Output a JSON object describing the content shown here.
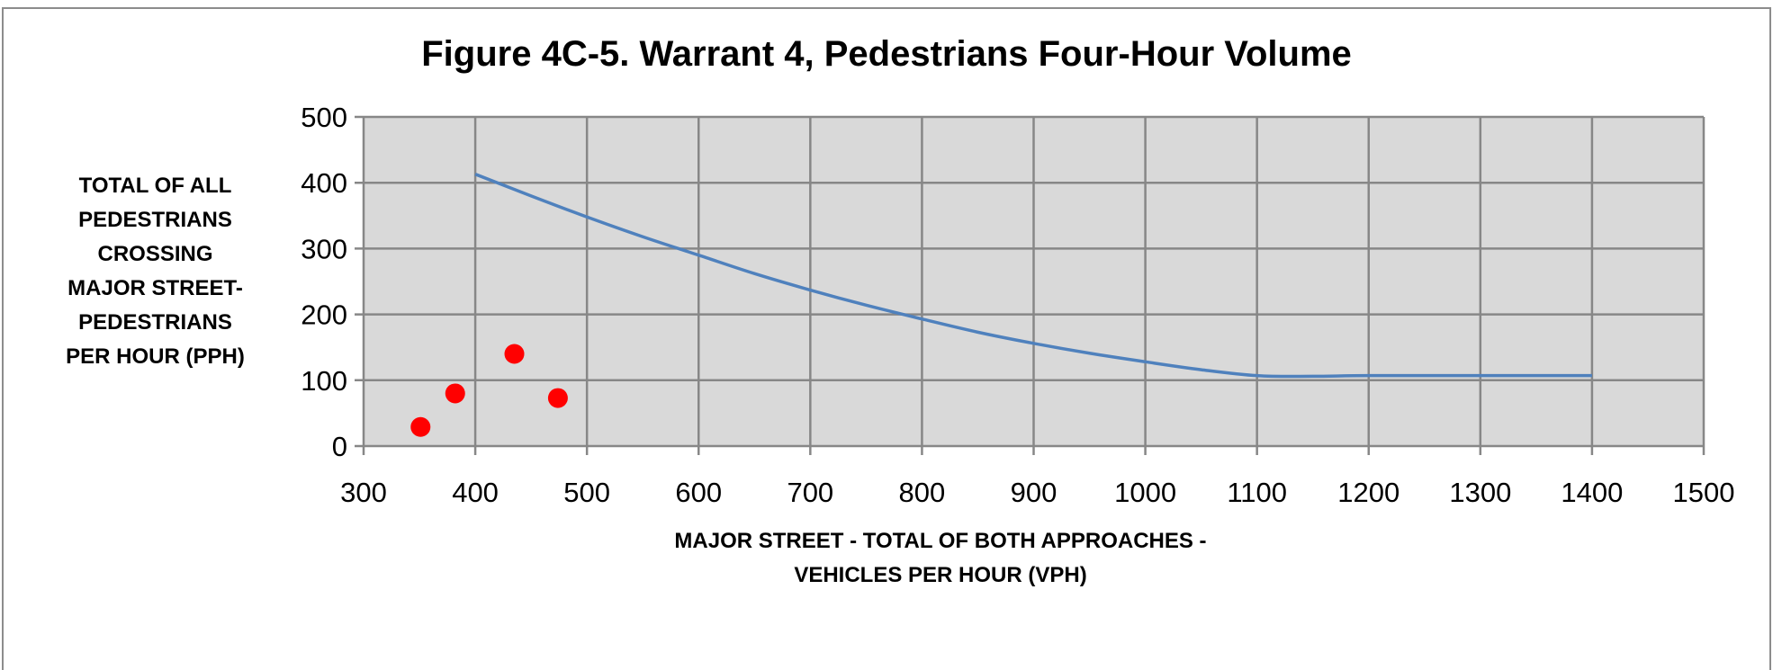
{
  "chart_data": {
    "type": "line",
    "title": "Figure 4C-5. Warrant 4, Pedestrians Four-Hour Volume",
    "ylabel_lines": [
      "TOTAL OF ALL",
      "PEDESTRIANS",
      "CROSSING",
      "MAJOR STREET-",
      "PEDESTRIANS",
      "PER HOUR (PPH)"
    ],
    "xlabel_lines": [
      "MAJOR STREET - TOTAL OF BOTH APPROACHES -",
      "VEHICLES PER HOUR (VPH)"
    ],
    "xlim": [
      300,
      1500
    ],
    "ylim": [
      0,
      500
    ],
    "x_ticks": [
      "300",
      "400",
      "500",
      "600",
      "700",
      "800",
      "900",
      "1000",
      "1100",
      "1200",
      "1300",
      "1400",
      "1500"
    ],
    "y_ticks": [
      "0",
      "100",
      "200",
      "300",
      "400",
      "500"
    ],
    "grid": true,
    "series": [
      {
        "kind": "line",
        "color": "#4f81bd",
        "x": [
          400,
          450,
          500,
          550,
          600,
          650,
          700,
          750,
          800,
          850,
          900,
          950,
          1000,
          1050,
          1100,
          1150,
          1200,
          1300,
          1400
        ],
        "y": [
          413,
          380,
          348,
          318,
          290,
          262,
          237,
          214,
          193,
          173,
          156,
          141,
          128,
          116,
          107,
          106,
          107,
          107,
          107
        ]
      },
      {
        "kind": "scatter",
        "color": "#ff0000",
        "x": [
          351,
          382,
          435,
          474
        ],
        "y": [
          29,
          80,
          140,
          73
        ]
      }
    ],
    "colors": {
      "plot_background": "#d9d9d9",
      "grid": "#878787"
    }
  }
}
